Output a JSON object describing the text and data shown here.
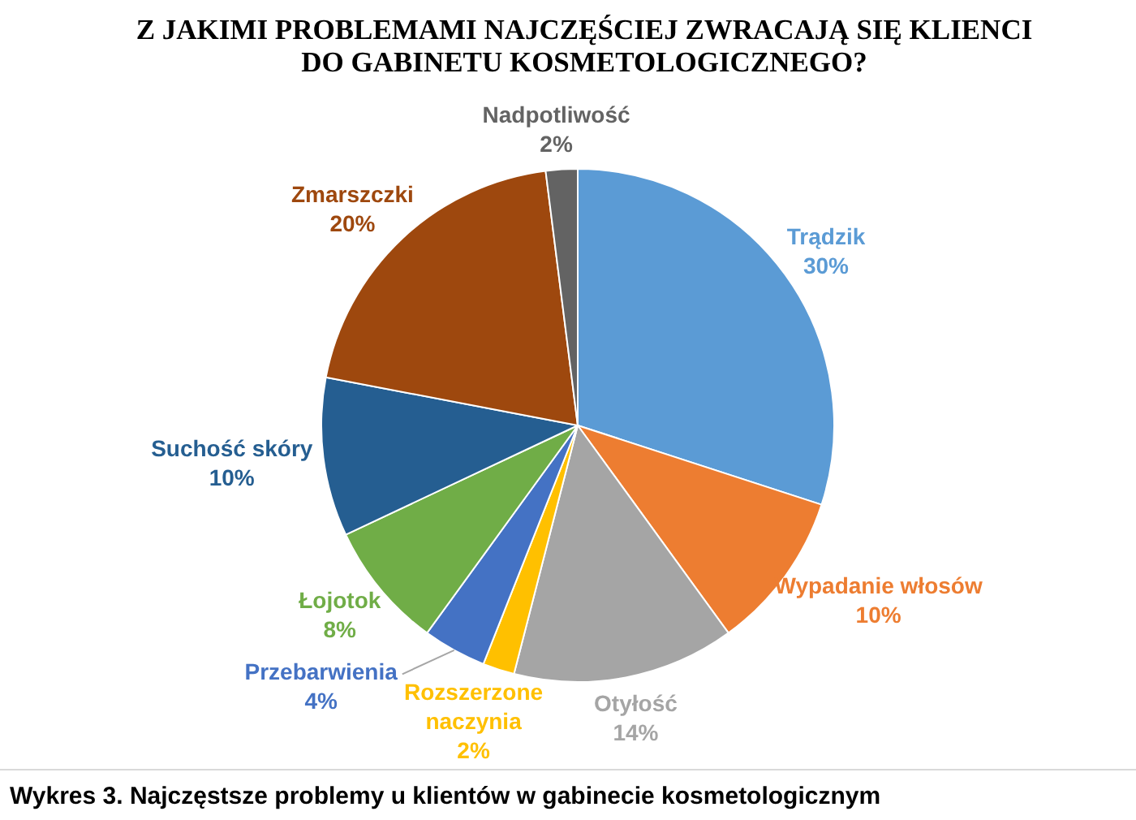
{
  "chart_data": {
    "type": "pie",
    "title": "Z JAKIMI PROBLEMAMI NAJCZĘŚCIEJ ZWRACAJĄ SIĘ KLIENCI DO GABINETU KOSMETOLOGICZNEGO?",
    "categories": [
      "Trądzik",
      "Wypadanie włosów",
      "Otyłość",
      "Rozszerzone naczynia",
      "Przebarwienia",
      "Łojotok",
      "Suchość skóry",
      "Zmarszczki",
      "Nadpotliwość"
    ],
    "values": [
      30,
      10,
      14,
      2,
      4,
      8,
      10,
      20,
      2
    ],
    "colors": [
      "#5b9bd5",
      "#ed7d31",
      "#a5a5a5",
      "#ffc000",
      "#4472c4",
      "#70ad47",
      "#255e91",
      "#9e480e",
      "#636363"
    ],
    "value_labels": [
      "30%",
      "10%",
      "14%",
      "2%",
      "4%",
      "8%",
      "10%",
      "20%",
      "2%"
    ],
    "annotations": [
      "Wykres 3. Najczęstsze problemy u klientów w gabinecie kosmetologicznym"
    ]
  }
}
